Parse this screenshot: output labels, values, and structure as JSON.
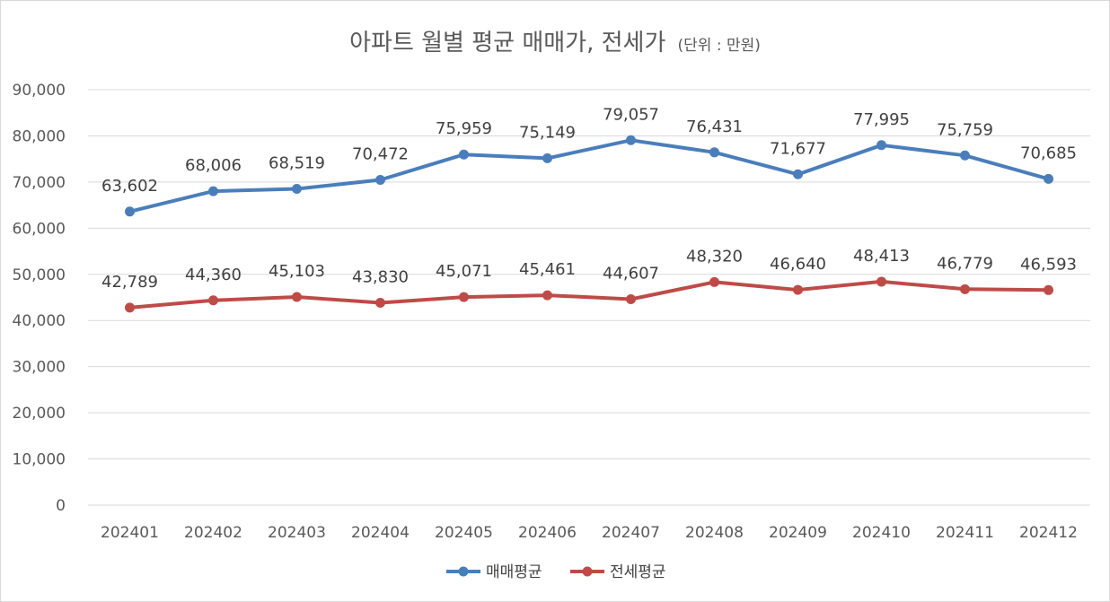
{
  "chart_data": {
    "type": "line",
    "title": "아파트 월별 평균 매매가, 전세가",
    "subtitle": "(단위 : 만원)",
    "xlabel": "",
    "ylabel": "",
    "categories": [
      "202401",
      "202402",
      "202403",
      "202404",
      "202405",
      "202406",
      "202407",
      "202408",
      "202409",
      "202410",
      "202411",
      "202412"
    ],
    "ylim": [
      0,
      90000
    ],
    "yticks": [
      0,
      10000,
      20000,
      30000,
      40000,
      50000,
      60000,
      70000,
      80000,
      90000
    ],
    "ytick_labels": [
      "0",
      "10,000",
      "20,000",
      "30,000",
      "40,000",
      "50,000",
      "60,000",
      "70,000",
      "80,000",
      "90,000"
    ],
    "grid": true,
    "legend_position": "bottom",
    "series": [
      {
        "name": "매매평균",
        "color": "#4a7ebb",
        "values": [
          63602,
          68006,
          68519,
          70472,
          75959,
          75149,
          79057,
          76431,
          71677,
          77995,
          75759,
          70685
        ],
        "labels": [
          "63,602",
          "68,006",
          "68,519",
          "70,472",
          "75,959",
          "75,149",
          "79,057",
          "76,431",
          "71,677",
          "77,995",
          "75,759",
          "70,685"
        ]
      },
      {
        "name": "전세평균",
        "color": "#be4b48",
        "values": [
          42789,
          44360,
          45103,
          43830,
          45071,
          45461,
          44607,
          48320,
          46640,
          48413,
          46779,
          46593
        ],
        "labels": [
          "42,789",
          "44,360",
          "45,103",
          "43,830",
          "45,071",
          "45,461",
          "44,607",
          "48,320",
          "46,640",
          "48,413",
          "46,779",
          "46,593"
        ]
      }
    ]
  }
}
